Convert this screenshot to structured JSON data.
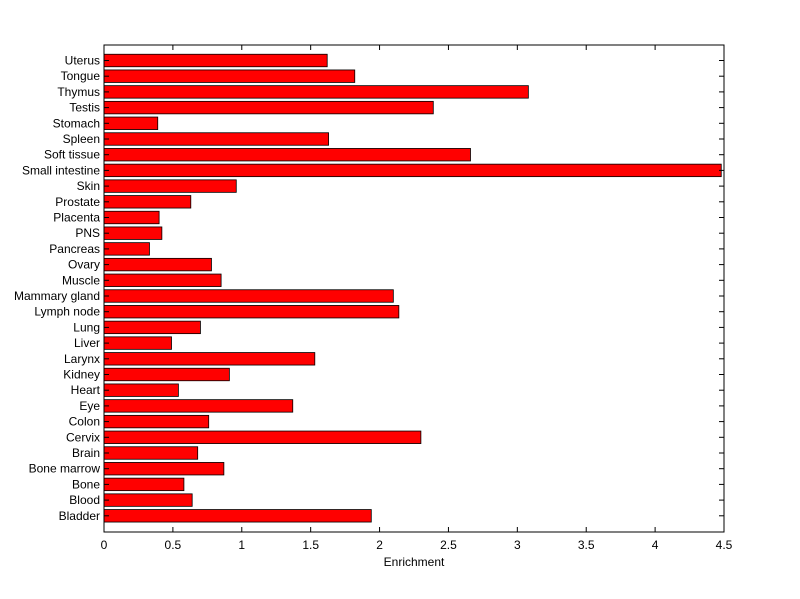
{
  "chart_data": {
    "type": "bar",
    "orientation": "horizontal",
    "title": "",
    "xlabel": "Enrichment",
    "ylabel": "",
    "xlim": [
      0,
      4.5
    ],
    "xticks": [
      "0",
      "0.5",
      "1",
      "1.5",
      "2",
      "2.5",
      "3",
      "3.5",
      "4",
      "4.5"
    ],
    "grid": false,
    "bar_color": "#ff0000",
    "categories": [
      "Uterus",
      "Tongue",
      "Thymus",
      "Testis",
      "Stomach",
      "Spleen",
      "Soft tissue",
      "Small intestine",
      "Skin",
      "Prostate",
      "Placenta",
      "PNS",
      "Pancreas",
      "Ovary",
      "Muscle",
      "Mammary gland",
      "Lymph node",
      "Lung",
      "Liver",
      "Larynx",
      "Kidney",
      "Heart",
      "Eye",
      "Colon",
      "Cervix",
      "Brain",
      "Bone marrow",
      "Bone",
      "Blood",
      "Bladder"
    ],
    "values": [
      1.62,
      1.82,
      3.08,
      2.39,
      0.39,
      1.63,
      2.66,
      4.48,
      0.96,
      0.63,
      0.4,
      0.42,
      0.33,
      0.78,
      0.85,
      2.1,
      2.14,
      0.7,
      0.49,
      1.53,
      0.91,
      0.54,
      1.37,
      0.76,
      2.3,
      0.68,
      0.87,
      0.58,
      0.64,
      1.94
    ]
  }
}
